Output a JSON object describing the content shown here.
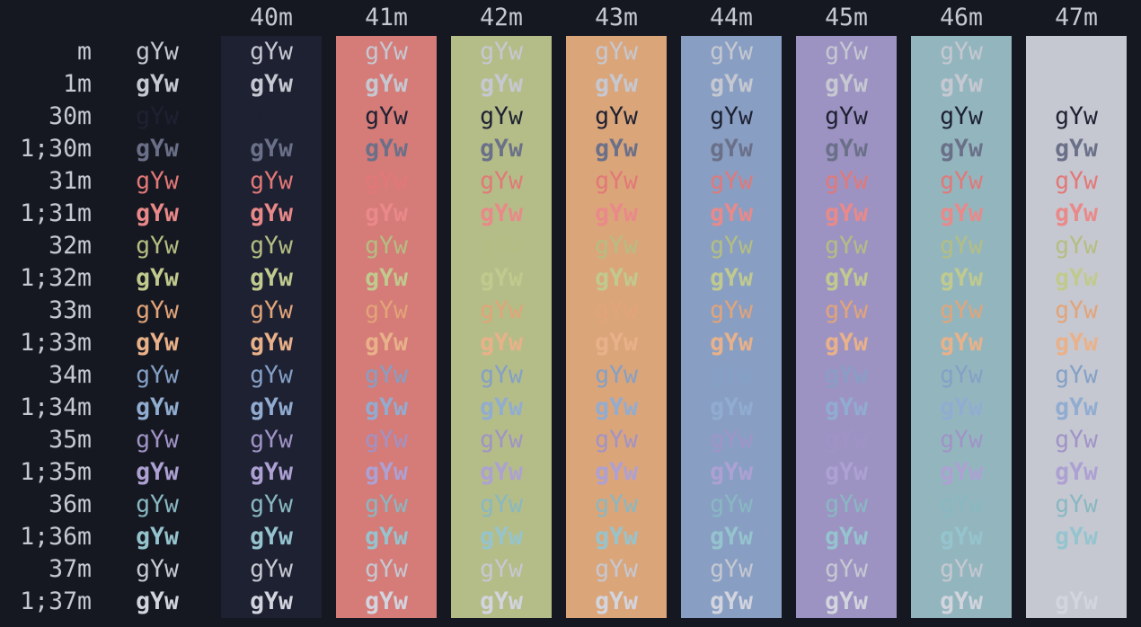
{
  "sample": "gYw",
  "bg_headers": [
    "40m",
    "41m",
    "42m",
    "43m",
    "44m",
    "45m",
    "46m",
    "47m"
  ],
  "rows": [
    {
      "label": "m",
      "fg": null,
      "bold": false
    },
    {
      "label": "1m",
      "fg": null,
      "bold": true
    },
    {
      "label": "30m",
      "fg": "#1e2132",
      "bold": false
    },
    {
      "label": "1;30m",
      "fg": "#6b7089",
      "bold": true
    },
    {
      "label": "31m",
      "fg": "#e27878",
      "bold": false
    },
    {
      "label": "1;31m",
      "fg": "#e98989",
      "bold": true
    },
    {
      "label": "32m",
      "fg": "#b4be82",
      "bold": false
    },
    {
      "label": "1;32m",
      "fg": "#c0ca8e",
      "bold": true
    },
    {
      "label": "33m",
      "fg": "#e2a478",
      "bold": false
    },
    {
      "label": "1;33m",
      "fg": "#e9b189",
      "bold": true
    },
    {
      "label": "34m",
      "fg": "#84a0c6",
      "bold": false
    },
    {
      "label": "1;34m",
      "fg": "#91acd1",
      "bold": true
    },
    {
      "label": "35m",
      "fg": "#a093c7",
      "bold": false
    },
    {
      "label": "1;35m",
      "fg": "#ada0d3",
      "bold": true
    },
    {
      "label": "36m",
      "fg": "#89b8c2",
      "bold": false
    },
    {
      "label": "1;36m",
      "fg": "#95c4ce",
      "bold": true
    },
    {
      "label": "37m",
      "fg": "#c6c8d1",
      "bold": false
    },
    {
      "label": "1;37m",
      "fg": "#d2d4de",
      "bold": true
    }
  ],
  "colors": {
    "background": "#161821",
    "foreground": "#c6c8d1",
    "bg_palette": [
      "#1e2132",
      "#d57b78",
      "#b4bd88",
      "#dba57a",
      "#889fc3",
      "#9d93c3",
      "#93b6be",
      "#c6c8d1"
    ]
  }
}
